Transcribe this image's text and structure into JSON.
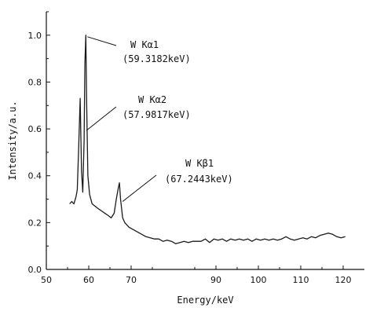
{
  "chart_data": {
    "type": "line",
    "xlabel": "Energy/keV",
    "ylabel": "Intensity/a.u.",
    "xlim": [
      50,
      125
    ],
    "ylim": [
      0,
      1.1
    ],
    "xticks": [
      {
        "value": 50,
        "label": "50"
      },
      {
        "value": 60,
        "label": "60"
      },
      {
        "value": 70,
        "label": "70"
      },
      {
        "value": 90,
        "label": "90"
      },
      {
        "value": 100,
        "label": "100"
      },
      {
        "value": 110,
        "label": "110"
      },
      {
        "value": 120,
        "label": "120"
      }
    ],
    "yticks": [
      {
        "value": 0.0,
        "label": "0.0"
      },
      {
        "value": 0.2,
        "label": "0.2"
      },
      {
        "value": 0.4,
        "label": "0.4"
      },
      {
        "value": 0.6,
        "label": "0.6"
      },
      {
        "value": 0.8,
        "label": "0.8"
      },
      {
        "value": 1.0,
        "label": "1.0"
      }
    ],
    "grid": false,
    "series": [
      {
        "color": "#1a1a1a",
        "x": [
          55.5,
          56,
          56.5,
          57,
          57.3,
          57.6,
          57.9817,
          58.3,
          58.6,
          58.9,
          59.1,
          59.3182,
          59.5,
          59.8,
          60.2,
          60.8,
          61.5,
          62.2,
          63,
          63.8,
          64.6,
          65.3,
          66,
          66.5,
          67,
          67.2443,
          67.5,
          68,
          68.5,
          69.5,
          70.5,
          71.5,
          72.5,
          73.5,
          74.5,
          75.5,
          76.5,
          77.5,
          78.5,
          79.5,
          80.5,
          81.5,
          82.5,
          83.5,
          84.5,
          85.5,
          86.5,
          87.5,
          88.5,
          89.5,
          90.5,
          91.5,
          92.5,
          93.5,
          94.5,
          95.5,
          96.5,
          97.5,
          98.5,
          99.5,
          100.5,
          101.5,
          102.5,
          103.5,
          104.5,
          105.5,
          106.5,
          107.5,
          108.5,
          109.5,
          110.5,
          111.5,
          112.5,
          113.5,
          114.5,
          115.5,
          116.5,
          117.5,
          118.5,
          119.5,
          120.5
        ],
        "y": [
          0.28,
          0.29,
          0.28,
          0.31,
          0.34,
          0.5,
          0.73,
          0.42,
          0.33,
          0.55,
          0.88,
          1.0,
          0.72,
          0.4,
          0.32,
          0.28,
          0.27,
          0.26,
          0.25,
          0.24,
          0.23,
          0.22,
          0.24,
          0.3,
          0.35,
          0.37,
          0.3,
          0.22,
          0.2,
          0.18,
          0.17,
          0.16,
          0.15,
          0.14,
          0.135,
          0.13,
          0.13,
          0.12,
          0.125,
          0.12,
          0.11,
          0.115,
          0.12,
          0.115,
          0.12,
          0.12,
          0.12,
          0.13,
          0.115,
          0.13,
          0.125,
          0.13,
          0.12,
          0.13,
          0.125,
          0.13,
          0.125,
          0.13,
          0.12,
          0.13,
          0.125,
          0.13,
          0.125,
          0.13,
          0.125,
          0.13,
          0.14,
          0.13,
          0.125,
          0.13,
          0.135,
          0.13,
          0.14,
          0.135,
          0.145,
          0.15,
          0.155,
          0.15,
          0.14,
          0.135,
          0.14
        ]
      }
    ],
    "annotations": [
      {
        "line1": "W Kα1",
        "line2": "(59.3182keV)",
        "x": 59.3182,
        "y": 1.0
      },
      {
        "line1": "W Kα2",
        "line2": "(57.9817keV)",
        "x": 57.9817,
        "y": 0.68
      },
      {
        "line1": "W Kβ1",
        "line2": "(67.2443keV)",
        "x": 67.2443,
        "y": 0.33
      }
    ]
  }
}
